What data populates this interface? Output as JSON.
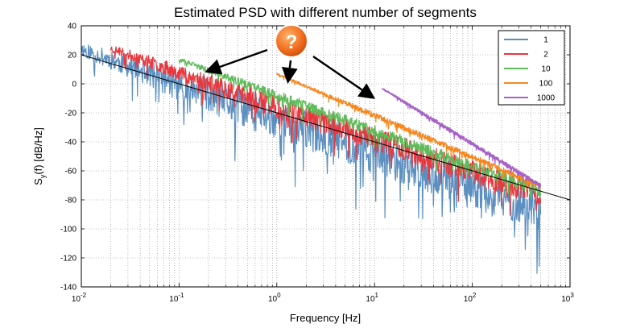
{
  "chart_data": {
    "type": "line",
    "title": "Estimated PSD with different number of segments",
    "xlabel": "Frequency [Hz]",
    "ylabel_main": "S",
    "ylabel_sub": "y",
    "ylabel_rest": "(f)  [dB/Hz]",
    "x_scale": "log",
    "xlim": [
      0.01,
      1000
    ],
    "ylim": [
      -140,
      40
    ],
    "grid": true,
    "legend_position": "top-right",
    "x_ticks": [
      {
        "value": 0.01,
        "base": "10",
        "exp": "-2"
      },
      {
        "value": 0.1,
        "base": "10",
        "exp": "-1"
      },
      {
        "value": 1,
        "base": "10",
        "exp": "0"
      },
      {
        "value": 10,
        "base": "10",
        "exp": "1"
      },
      {
        "value": 100,
        "base": "10",
        "exp": "2"
      },
      {
        "value": 1000,
        "base": "10",
        "exp": "3"
      }
    ],
    "y_ticks": [
      40,
      20,
      0,
      -20,
      -40,
      -60,
      -80,
      -100,
      -120,
      -140
    ],
    "reference_line": {
      "color": "#000000",
      "points": [
        [
          0.01,
          20
        ],
        [
          1000,
          -80
        ]
      ]
    },
    "series": [
      {
        "name": "1",
        "color": "#5b8fc0",
        "x_start": 0.01,
        "x_end": 500,
        "trend_start": 25,
        "trend_end": -85,
        "spread": 14,
        "noise_seed": 11
      },
      {
        "name": "2",
        "color": "#e8383d",
        "x_start": 0.02,
        "x_end": 500,
        "trend_start": 25,
        "trend_end": -75,
        "spread": 8,
        "noise_seed": 23
      },
      {
        "name": "10",
        "color": "#5fbb5a",
        "x_start": 0.1,
        "x_end": 500,
        "trend_start": 17,
        "trend_end": -73,
        "spread": 4,
        "noise_seed": 37
      },
      {
        "name": "100",
        "color": "#f5871f",
        "x_start": 1,
        "x_end": 500,
        "trend_start": 7,
        "trend_end": -70,
        "spread": 2,
        "noise_seed": 41
      },
      {
        "name": "1000",
        "color": "#a661c7",
        "x_start": 12,
        "x_end": 500,
        "trend_start": -3,
        "trend_end": -70,
        "spread": 1.5,
        "noise_seed": 53
      }
    ]
  },
  "annotation": {
    "glyph": "?",
    "badge_color": "#f36f21"
  }
}
